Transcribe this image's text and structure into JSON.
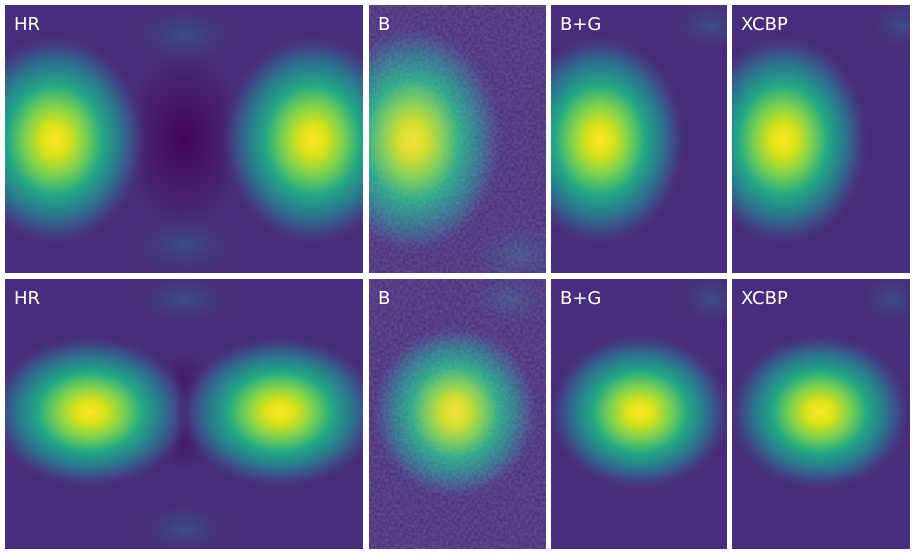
{
  "rows": [
    {
      "panels": [
        "HR",
        "B",
        "B+G",
        "XCBP"
      ]
    },
    {
      "panels": [
        "HR",
        "B",
        "B+G",
        "XCBP"
      ]
    }
  ]
}
